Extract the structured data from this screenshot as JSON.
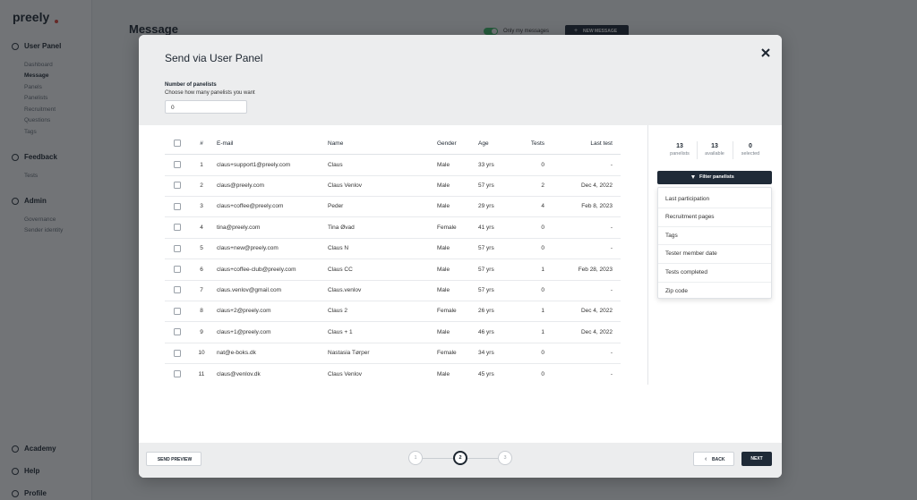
{
  "sidebar": {
    "logo": "preely",
    "sections": [
      {
        "title": "User Panel",
        "items": [
          "Dashboard",
          "Message",
          "Panels",
          "Panelists",
          "Recruitment",
          "Questions",
          "Tags"
        ]
      },
      {
        "title": "Feedback",
        "items": [
          "Tests"
        ]
      },
      {
        "title": "Admin",
        "items": [
          "Governance",
          "Sender identity"
        ]
      }
    ],
    "bottom": [
      "Academy",
      "Help",
      "Profile"
    ]
  },
  "page": {
    "title": "Message",
    "toggle_label": "Only my messages",
    "new_button": "NEW MESSAGE"
  },
  "modal": {
    "title": "Send via User Panel",
    "count_label": "Number of panelists",
    "count_hint": "Choose how many panelists you want",
    "count_value": "0",
    "table": {
      "headers": [
        "#",
        "E-mail",
        "Name",
        "Gender",
        "Age",
        "Tests",
        "Last test"
      ],
      "rows": [
        [
          "1",
          "claus+support1@preely.com",
          "Claus",
          "Male",
          "33 yrs",
          "0",
          "-"
        ],
        [
          "2",
          "claus@preely.com",
          "Claus Venlov",
          "Male",
          "57 yrs",
          "2",
          "Dec 4, 2022"
        ],
        [
          "3",
          "claus+coffee@preely.com",
          "Peder",
          "Male",
          "29 yrs",
          "4",
          "Feb 8, 2023"
        ],
        [
          "4",
          "tina@preely.com",
          "Tina Øvad",
          "Female",
          "41 yrs",
          "0",
          "-"
        ],
        [
          "5",
          "claus+new@preely.com",
          "Claus N",
          "Male",
          "57 yrs",
          "0",
          "-"
        ],
        [
          "6",
          "claus+coffee-club@preely.com",
          "Claus CC",
          "Male",
          "57 yrs",
          "1",
          "Feb 28, 2023"
        ],
        [
          "7",
          "claus.venlov@gmail.com",
          "Claus.venlov",
          "Male",
          "57 yrs",
          "0",
          "-"
        ],
        [
          "8",
          "claus+2@preely.com",
          "Claus 2",
          "Female",
          "26 yrs",
          "1",
          "Dec 4, 2022"
        ],
        [
          "9",
          "claus+1@preely.com",
          "Claus + 1",
          "Male",
          "46 yrs",
          "1",
          "Dec 4, 2022"
        ],
        [
          "10",
          "nat@e-boks.dk",
          "Nastasia Tørper",
          "Female",
          "34 yrs",
          "0",
          "-"
        ],
        [
          "11",
          "claus@venlov.dk",
          "Claus Venlov",
          "Male",
          "45 yrs",
          "0",
          "-"
        ]
      ]
    },
    "stats": [
      {
        "value": "13",
        "label": "panelists"
      },
      {
        "value": "13",
        "label": "available"
      },
      {
        "value": "0",
        "label": "selected"
      }
    ],
    "filter_button": "Filter panelists",
    "filters": [
      "Last participation",
      "Recruitment pages",
      "Tags",
      "Tester member date",
      "Tests completed",
      "Zip code"
    ],
    "footer": {
      "send_preview": "SEND PREVIEW",
      "steps": [
        "1",
        "2",
        "3"
      ],
      "back": "BACK",
      "next": "NEXT"
    }
  }
}
